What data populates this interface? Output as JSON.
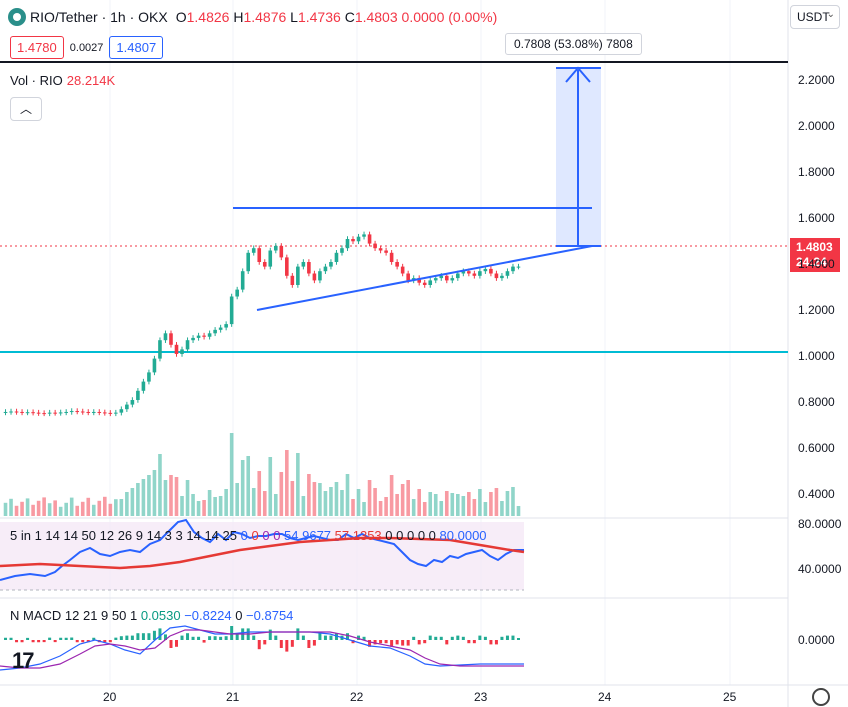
{
  "header": {
    "symbol": "RIO/Tether · 1h · OKX",
    "o_label": "O",
    "o": "1.4826",
    "h_label": "H",
    "h": "1.4876",
    "l_label": "L",
    "l": "1.4736",
    "c_label": "C",
    "c": "1.4803",
    "change": "0.0000 (0.00%)"
  },
  "prices": {
    "sell": "1.4780",
    "spread": "0.0027",
    "buy": "1.4807"
  },
  "volume": {
    "label": "Vol · RIO",
    "value": "28.214K"
  },
  "collapse_icon": "chevron-up-icon",
  "currency_selector": "USDT",
  "measure_label": "0.7808 (53.08%) 7808",
  "last_price": {
    "price": "1.4803",
    "countdown": "24:24"
  },
  "rsi": {
    "label": "5 in 1 14 14 50 12 26 9 14 3 3 14 14 25",
    "v1": "0",
    "v2": "0",
    "v3": "0",
    "v4": "0",
    "v5": "54.9677",
    "v6": "57.1353",
    "v7": "0 0 0 0 0",
    "v8": "80.0000"
  },
  "macd": {
    "label": "N MACD 12 21 9 50 1",
    "v1": "0.0530",
    "v2": "−0.8224",
    "v3": "0",
    "v4": "−0.8754"
  },
  "price_axis": [
    "2.2000",
    "2.0000",
    "1.8000",
    "1.6000",
    "1.4000",
    "1.2000",
    "1.0000",
    "0.8000",
    "0.6000",
    "0.4000"
  ],
  "rsi_axis": [
    "80.0000",
    "40.0000"
  ],
  "macd_axis": [
    "0.0000"
  ],
  "time_axis": [
    "20",
    "21",
    "22",
    "23",
    "24",
    "25"
  ],
  "colors": {
    "up": "#22ab94",
    "down": "#f23645",
    "blue": "#2962ff",
    "cyan": "#00bcd4",
    "rsi_fill": "#f3e5f5"
  }
}
